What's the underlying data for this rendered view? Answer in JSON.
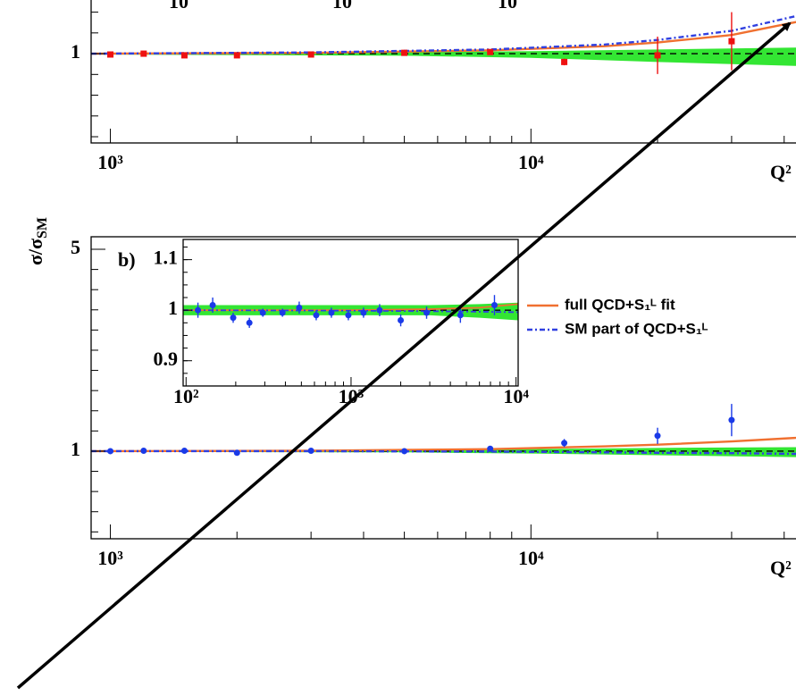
{
  "chart_data": [
    {
      "type": "scatter",
      "xlabel": "Q²",
      "xlog": true,
      "xlim": [
        900,
        44600
      ],
      "ylim": [
        0.785,
        1.14
      ],
      "xticks": [
        {
          "value": 1000,
          "label": "10³"
        },
        {
          "value": 10000,
          "label": "10⁴"
        }
      ],
      "yticks": [
        1
      ],
      "reference": 1,
      "inset_tick_labels": [
        "10",
        "10",
        "10"
      ],
      "band": {
        "color": "#33e633",
        "x": [
          900,
          5000,
          10000,
          20000,
          44600
        ],
        "lower": [
          0.998,
          0.995,
          0.99,
          0.98,
          0.97
        ],
        "upper": [
          1.002,
          1.004,
          1.006,
          1.01,
          1.015
        ]
      },
      "lines": [
        {
          "color": "#f07030",
          "dash": "solid",
          "x": [
            900,
            3000,
            8000,
            15000,
            20000,
            30000,
            44600
          ],
          "values": [
            1,
            1.002,
            1.008,
            1.018,
            1.027,
            1.045,
            1.08
          ]
        },
        {
          "color": "#3040e0",
          "dash": "dashdot",
          "x": [
            900,
            3000,
            8000,
            15000,
            20000,
            30000,
            44600
          ],
          "values": [
            1,
            1.003,
            1.01,
            1.022,
            1.033,
            1.055,
            1.095
          ]
        }
      ],
      "points": {
        "color": "#ee1111",
        "marker": "square",
        "x": [
          1000,
          1200,
          1500,
          2000,
          3000,
          5000,
          8000,
          12000,
          20000,
          30000
        ],
        "values": [
          0.998,
          1.0,
          0.996,
          0.996,
          0.998,
          1.002,
          1.004,
          0.98,
          0.996,
          1.03
        ],
        "errors": [
          0.003,
          0.003,
          0.003,
          0.003,
          0.003,
          0.004,
          0.005,
          0.008,
          0.045,
          0.07
        ]
      }
    },
    {
      "type": "scatter",
      "label": "b)",
      "ylabel": "σ/σ",
      "ylabel_sub": "SM",
      "xlabel": "Q²",
      "xlog": true,
      "xlim": [
        900,
        44600
      ],
      "ylim": [
        0.783,
        1.531
      ],
      "xticks": [
        {
          "value": 1000,
          "label": "10³"
        },
        {
          "value": 10000,
          "label": "10⁴"
        }
      ],
      "yticks": [
        1,
        {
          "value": 1.5,
          "label": "5"
        }
      ],
      "reference": 1,
      "band": {
        "color": "#33e633",
        "x": [
          900,
          5000,
          10000,
          20000,
          44600
        ],
        "lower": [
          0.998,
          0.997,
          0.994,
          0.99,
          0.985
        ],
        "upper": [
          1.002,
          1.003,
          1.005,
          1.008,
          1.01
        ]
      },
      "lines": [
        {
          "name": "full QCD+S₁ᴸ fit",
          "color": "#f07030",
          "dash": "solid",
          "x": [
            900,
            3000,
            8000,
            15000,
            20000,
            30000,
            44600
          ],
          "values": [
            1,
            1.001,
            1.005,
            1.012,
            1.016,
            1.024,
            1.034
          ]
        },
        {
          "name": "SM part of QCD+S₁ᴸ",
          "color": "#3040e0",
          "dash": "dashdot",
          "x": [
            900,
            3000,
            8000,
            15000,
            20000,
            30000,
            44600
          ],
          "values": [
            1,
            1.0,
            0.999,
            0.997,
            0.996,
            0.995,
            0.993
          ]
        }
      ],
      "points": {
        "color": "#1a3ae8",
        "marker": "circle",
        "x": [
          1000,
          1200,
          1500,
          2000,
          3000,
          5000,
          8000,
          12000,
          20000,
          30000
        ],
        "values": [
          1.0,
          1.001,
          1.001,
          0.996,
          1.001,
          1.0,
          1.006,
          1.02,
          1.038,
          1.077
        ],
        "errors": [
          0.003,
          0.003,
          0.003,
          0.003,
          0.003,
          0.003,
          0.004,
          0.01,
          0.02,
          0.04
        ]
      }
    },
    {
      "type": "scatter",
      "xlog": true,
      "xlim": [
        96,
        10300
      ],
      "ylim": [
        0.85,
        1.14
      ],
      "xticks": [
        {
          "value": 100,
          "label": "10²"
        },
        {
          "value": 1000,
          "label": "10³"
        },
        {
          "value": 10000,
          "label": "10⁴"
        }
      ],
      "yticks": [
        0.9,
        1,
        1.1
      ],
      "reference": 1,
      "band": {
        "color": "#33e633",
        "x": [
          96,
          1000,
          3000,
          6000,
          10300
        ],
        "lower": [
          0.99,
          0.99,
          0.99,
          0.985,
          0.98
        ],
        "upper": [
          1.01,
          1.01,
          1.01,
          1.012,
          1.015
        ]
      },
      "lines": [
        {
          "color": "#f07030",
          "dash": "solid",
          "x": [
            96,
            1000,
            3000,
            6000,
            10300
          ],
          "values": [
            1,
            1,
            1.002,
            1.005,
            1.012
          ]
        },
        {
          "color": "#3040e0",
          "dash": "dashdot",
          "x": [
            96,
            1000,
            3000,
            6000,
            10300
          ],
          "values": [
            1,
            0.999,
            0.998,
            0.997,
            0.996
          ]
        }
      ],
      "points": {
        "color": "#1a3ae8",
        "marker": "circle",
        "x": [
          118,
          145,
          193,
          242,
          292,
          384,
          485,
          615,
          760,
          963,
          1190,
          1490,
          2000,
          2870,
          4600,
          7400
        ],
        "values": [
          1.0,
          1.01,
          0.985,
          0.975,
          0.995,
          0.995,
          1.005,
          0.99,
          0.995,
          0.99,
          0.995,
          1.0,
          0.98,
          0.995,
          0.99,
          1.01
        ],
        "errors": [
          0.015,
          0.015,
          0.01,
          0.01,
          0.008,
          0.008,
          0.012,
          0.01,
          0.01,
          0.01,
          0.01,
          0.012,
          0.012,
          0.012,
          0.015,
          0.02
        ]
      }
    }
  ]
}
